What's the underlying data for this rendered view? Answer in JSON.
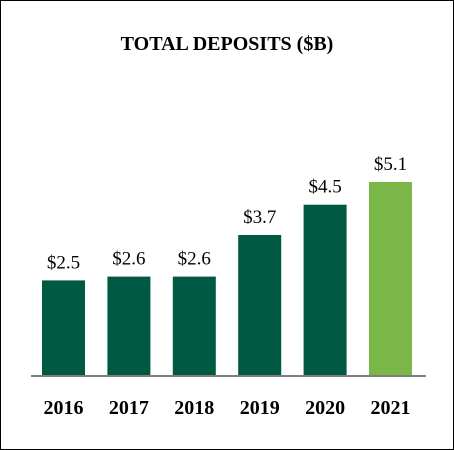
{
  "chart_data": {
    "type": "bar",
    "title": "TOTAL DEPOSITS ($B)",
    "categories": [
      "2016",
      "2017",
      "2018",
      "2019",
      "2020",
      "2021"
    ],
    "values": [
      2.5,
      2.6,
      2.6,
      3.7,
      4.5,
      5.1
    ],
    "value_labels": [
      "$2.5",
      "$2.6",
      "$2.6",
      "$3.7",
      "$4.5",
      "$5.1"
    ],
    "colors": {
      "default": "#005a43",
      "highlight": "#7ab648",
      "axis": "#7f7f7f"
    },
    "highlight_index": 5,
    "grid": false,
    "ylim": [
      0,
      5.1
    ]
  }
}
